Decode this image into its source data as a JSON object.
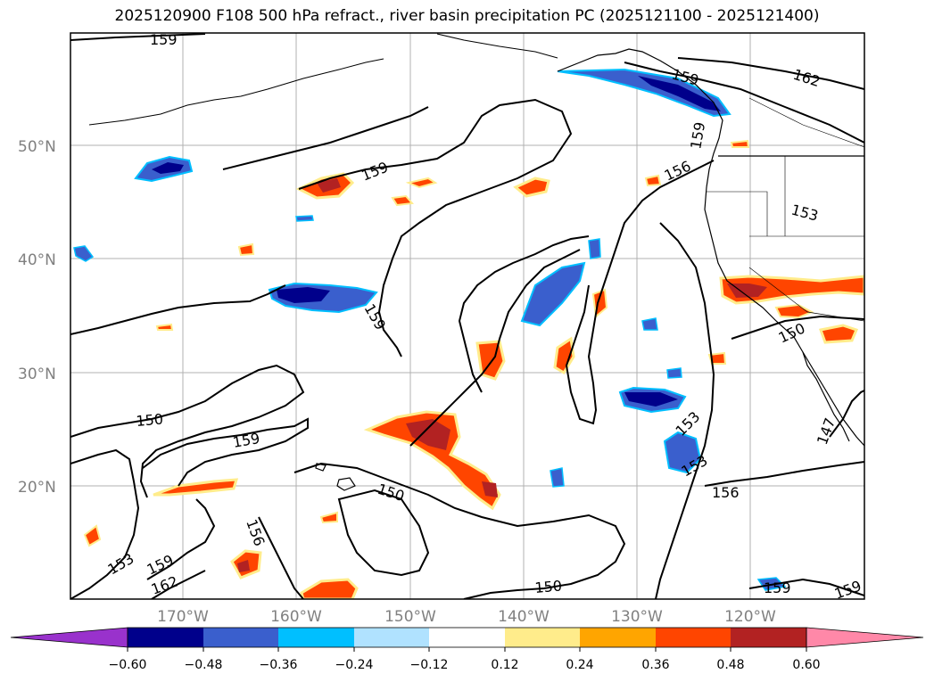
{
  "title": "2025120900 F108 500 hPa refract., river basin precipitation PC (2025121100 - 2025121400)",
  "lat_labels": [
    "50°N",
    "40°N",
    "30°N",
    "20°N"
  ],
  "lon_labels": [
    "170°W",
    "160°W",
    "150°W",
    "140°W",
    "130°W",
    "120°W"
  ],
  "contour_labels": [
    "159",
    "159",
    "162",
    "159",
    "156",
    "153",
    "159",
    "150",
    "159",
    "150",
    "150",
    "153",
    "153",
    "156",
    "147",
    "156",
    "153",
    "159",
    "162",
    "150",
    "159",
    "159",
    "159"
  ],
  "colorbar": {
    "ticks": [
      "−0.60",
      "−0.48",
      "−0.36",
      "−0.24",
      "−0.12",
      "0.12",
      "0.24",
      "0.36",
      "0.48",
      "0.60"
    ],
    "colors": [
      "#9932cc",
      "#00008b",
      "#3a5fcd",
      "#00bfff",
      "#b0e2ff",
      "#ffffff",
      "#ffec8b",
      "#ffa500",
      "#ff4500",
      "#b22222",
      "#ff88a8"
    ]
  }
}
